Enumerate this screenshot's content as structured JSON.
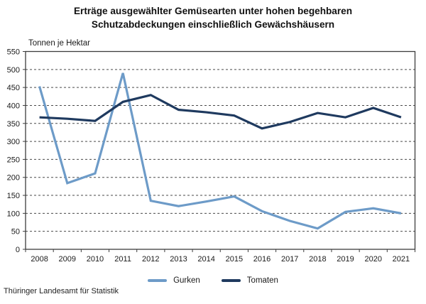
{
  "title": {
    "line1": "Erträge ausgewählter Gemüsearten unter hohen begehbaren",
    "line2": "Schutzabdeckungen einschließlich Gewächshäusern"
  },
  "source": "Thüringer Landesamt für Statistik",
  "chart_data": {
    "type": "line",
    "title": "Erträge ausgewählter Gemüsearten unter hohen begehbaren Schutzabdeckungen einschließlich Gewächshäusern",
    "ylabel": "Tonnen je Hektar",
    "xlabel": "",
    "ylim": [
      0,
      550
    ],
    "ytick_step": 50,
    "grid": true,
    "grid_style": "dashed",
    "legend_position": "bottom",
    "axis_color": "#3d3d3d",
    "grid_color": "#4a4a4a",
    "categories": [
      "2008",
      "2009",
      "2010",
      "2011",
      "2012",
      "2013",
      "2014",
      "2015",
      "2016",
      "2017",
      "2018",
      "2019",
      "2020",
      "2021"
    ],
    "series": [
      {
        "name": "Gurken",
        "color": "#6D9BC8",
        "values": [
          453,
          184,
          211,
          490,
          135,
          120,
          133,
          147,
          106,
          79,
          58,
          104,
          114,
          100
        ]
      },
      {
        "name": "Tomaten",
        "color": "#1F3A5F",
        "values": [
          367,
          363,
          357,
          410,
          429,
          388,
          381,
          372,
          336,
          354,
          379,
          367,
          393,
          367
        ]
      }
    ]
  }
}
